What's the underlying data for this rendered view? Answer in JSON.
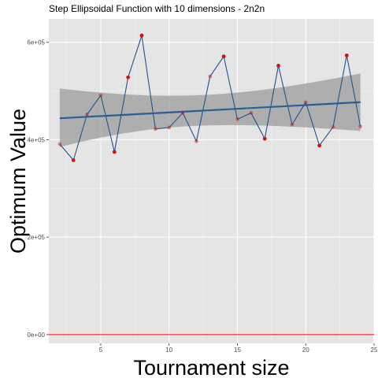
{
  "chart_data": {
    "type": "line",
    "title": "Step Ellipsoidal Function with 10 dimensions -  2n2n",
    "xlabel": "Tournament size",
    "ylabel": "Optimum Value",
    "xlim": [
      1.2,
      25
    ],
    "ylim": [
      -18000,
      648000
    ],
    "x_ticks": [
      5,
      10,
      15,
      20,
      25
    ],
    "x_tick_labels": [
      "5",
      "10",
      "15",
      "20",
      "25"
    ],
    "y_ticks": [
      0,
      200000,
      400000,
      600000
    ],
    "y_tick_labels": [
      "0e+00",
      "2e+05",
      "4e+05",
      "6e+05"
    ],
    "grid": true,
    "series": [
      {
        "name": "Optimum value",
        "x": [
          2,
          3,
          4,
          5,
          6,
          7,
          8,
          9,
          10,
          11,
          12,
          13,
          14,
          15,
          16,
          17,
          18,
          19,
          20,
          21,
          22,
          23,
          24
        ],
        "values": [
          391000,
          358000,
          452000,
          491000,
          375000,
          528000,
          614000,
          422000,
          425000,
          455000,
          397000,
          530000,
          571000,
          442000,
          455000,
          402000,
          552000,
          431000,
          477000,
          388000,
          426000,
          573000,
          427000
        ]
      }
    ],
    "trend": {
      "method": "linear",
      "start": [
        2,
        444000
      ],
      "end": [
        24,
        477000
      ],
      "band_lower": [
        385000,
        418000
      ],
      "band_upper": [
        505000,
        536000
      ]
    },
    "reference_line": {
      "y": 0
    },
    "colors": {
      "panel": "#e5e5e5",
      "grid_major": "#ffffff",
      "grid_minor": "#f0f0f0",
      "line": "#23548a",
      "point": "#d41111",
      "trend": "#2b5e96",
      "band": "#999999",
      "reference": "#ff2a2a"
    }
  }
}
